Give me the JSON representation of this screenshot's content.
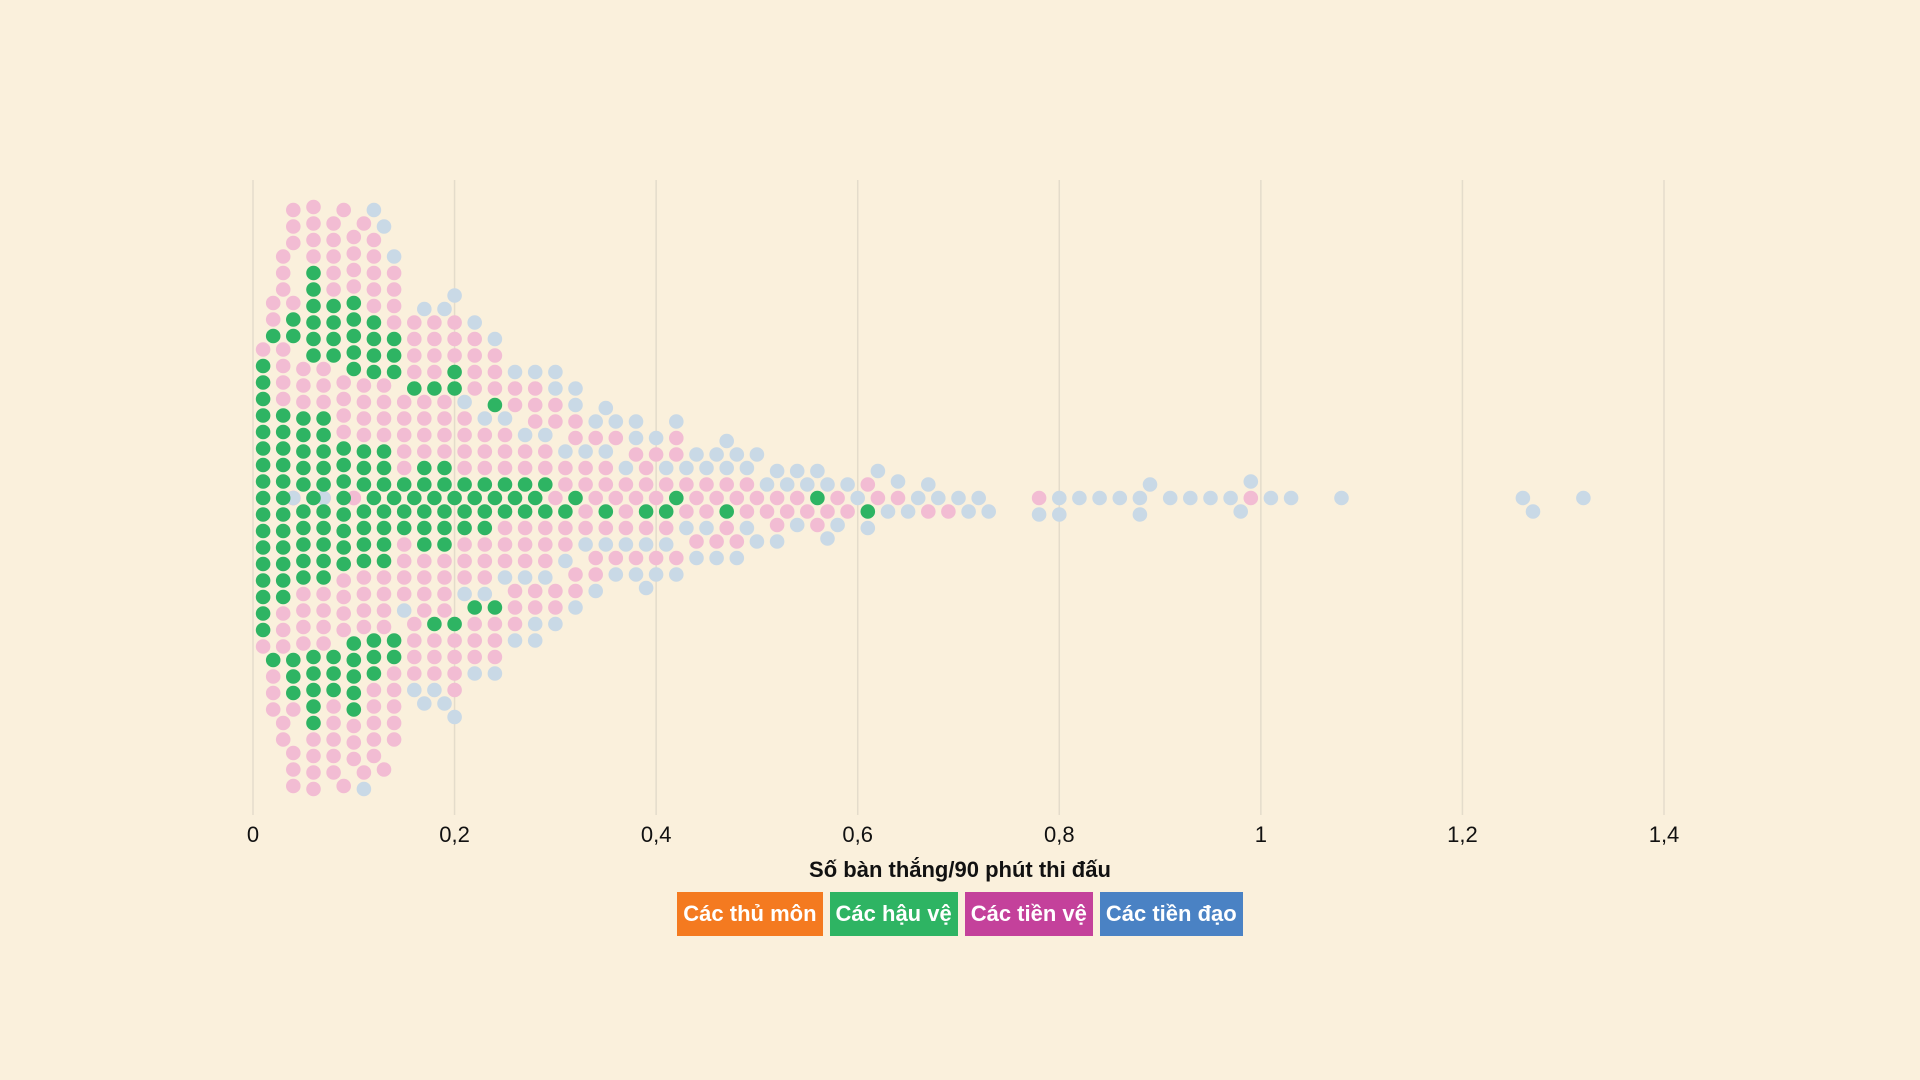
{
  "chart_data": {
    "type": "beeswarm",
    "xlabel": "Số bàn thắng/90 phút thi đấu",
    "xlim": [
      0,
      1.4
    ],
    "ticks": [
      {
        "value": 0,
        "label": "0"
      },
      {
        "value": 0.2,
        "label": "0,2"
      },
      {
        "value": 0.4,
        "label": "0,4"
      },
      {
        "value": 0.6,
        "label": "0,6"
      },
      {
        "value": 0.8,
        "label": "0,8"
      },
      {
        "value": 1.0,
        "label": "1"
      },
      {
        "value": 1.2,
        "label": "1,2"
      },
      {
        "value": 1.4,
        "label": "1,4"
      }
    ],
    "grid": true,
    "series": [
      {
        "name": "Các thủ môn",
        "key": "gk",
        "legend_color": "#f47a20",
        "dot_color": "#f47a20",
        "active": false,
        "values": []
      },
      {
        "name": "Các hậu vệ",
        "key": "def",
        "legend_color": "#2eb463",
        "dot_color": "#2eb463",
        "active": true,
        "values": [
          0.01,
          0.01,
          0.01,
          0.01,
          0.01,
          0.01,
          0.01,
          0.01,
          0.01,
          0.01,
          0.01,
          0.01,
          0.01,
          0.01,
          0.01,
          0.01,
          0.01,
          0.02,
          0.02,
          0.03,
          0.03,
          0.03,
          0.03,
          0.03,
          0.03,
          0.03,
          0.03,
          0.03,
          0.03,
          0.03,
          0.03,
          0.04,
          0.04,
          0.04,
          0.04,
          0.04,
          0.05,
          0.05,
          0.05,
          0.05,
          0.05,
          0.05,
          0.05,
          0.05,
          0.05,
          0.05,
          0.06,
          0.06,
          0.06,
          0.06,
          0.06,
          0.06,
          0.06,
          0.06,
          0.06,
          0.06,
          0.06,
          0.06,
          0.07,
          0.07,
          0.07,
          0.07,
          0.07,
          0.07,
          0.07,
          0.07,
          0.07,
          0.07,
          0.08,
          0.08,
          0.08,
          0.08,
          0.08,
          0.08,
          0.08,
          0.09,
          0.09,
          0.09,
          0.09,
          0.09,
          0.09,
          0.09,
          0.09,
          0.1,
          0.1,
          0.1,
          0.1,
          0.1,
          0.1,
          0.1,
          0.1,
          0.1,
          0.1,
          0.11,
          0.11,
          0.11,
          0.11,
          0.11,
          0.11,
          0.11,
          0.12,
          0.12,
          0.12,
          0.12,
          0.12,
          0.12,
          0.12,
          0.12,
          0.13,
          0.13,
          0.13,
          0.13,
          0.13,
          0.13,
          0.13,
          0.14,
          0.14,
          0.14,
          0.14,
          0.14,
          0.14,
          0.15,
          0.15,
          0.15,
          0.16,
          0.16,
          0.17,
          0.17,
          0.17,
          0.17,
          0.17,
          0.18,
          0.18,
          0.18,
          0.19,
          0.19,
          0.19,
          0.19,
          0.19,
          0.2,
          0.2,
          0.2,
          0.2,
          0.21,
          0.21,
          0.21,
          0.22,
          0.22,
          0.23,
          0.23,
          0.23,
          0.24,
          0.24,
          0.24,
          0.25,
          0.25,
          0.26,
          0.27,
          0.27,
          0.28,
          0.29,
          0.29,
          0.31,
          0.32,
          0.35,
          0.39,
          0.41,
          0.42,
          0.47,
          0.56,
          0.61
        ]
      },
      {
        "name": "Các tiền vệ",
        "key": "mid",
        "legend_color": "#c4419b",
        "dot_color": "#f2bcd3",
        "active": false,
        "values": [
          0.01,
          0.01,
          0.02,
          0.02,
          0.02,
          0.02,
          0.02,
          0.03,
          0.03,
          0.03,
          0.03,
          0.03,
          0.03,
          0.03,
          0.03,
          0.03,
          0.03,
          0.03,
          0.03,
          0.04,
          0.04,
          0.04,
          0.04,
          0.04,
          0.04,
          0.04,
          0.04,
          0.04,
          0.04,
          0.04,
          0.05,
          0.05,
          0.05,
          0.05,
          0.05,
          0.05,
          0.05,
          0.06,
          0.06,
          0.06,
          0.06,
          0.06,
          0.06,
          0.06,
          0.06,
          0.06,
          0.06,
          0.07,
          0.07,
          0.07,
          0.07,
          0.07,
          0.07,
          0.07,
          0.07,
          0.08,
          0.08,
          0.08,
          0.08,
          0.08,
          0.08,
          0.08,
          0.08,
          0.08,
          0.08,
          0.09,
          0.09,
          0.09,
          0.09,
          0.09,
          0.09,
          0.09,
          0.09,
          0.09,
          0.09,
          0.1,
          0.1,
          0.1,
          0.1,
          0.1,
          0.1,
          0.1,
          0.1,
          0.1,
          0.11,
          0.11,
          0.11,
          0.11,
          0.11,
          0.11,
          0.11,
          0.11,
          0.11,
          0.11,
          0.12,
          0.12,
          0.12,
          0.12,
          0.12,
          0.12,
          0.12,
          0.12,
          0.12,
          0.12,
          0.13,
          0.13,
          0.13,
          0.13,
          0.13,
          0.13,
          0.13,
          0.13,
          0.13,
          0.14,
          0.14,
          0.14,
          0.14,
          0.14,
          0.14,
          0.14,
          0.14,
          0.14,
          0.15,
          0.15,
          0.15,
          0.15,
          0.15,
          0.15,
          0.15,
          0.15,
          0.15,
          0.16,
          0.16,
          0.16,
          0.16,
          0.16,
          0.16,
          0.16,
          0.16,
          0.17,
          0.17,
          0.17,
          0.17,
          0.17,
          0.17,
          0.17,
          0.17,
          0.18,
          0.18,
          0.18,
          0.18,
          0.18,
          0.18,
          0.18,
          0.19,
          0.19,
          0.19,
          0.19,
          0.19,
          0.19,
          0.19,
          0.19,
          0.2,
          0.2,
          0.2,
          0.2,
          0.2,
          0.2,
          0.2,
          0.21,
          0.21,
          0.21,
          0.21,
          0.21,
          0.21,
          0.21,
          0.22,
          0.22,
          0.22,
          0.22,
          0.22,
          0.22,
          0.22,
          0.23,
          0.23,
          0.23,
          0.23,
          0.23,
          0.23,
          0.24,
          0.24,
          0.24,
          0.24,
          0.24,
          0.24,
          0.25,
          0.25,
          0.25,
          0.25,
          0.25,
          0.25,
          0.26,
          0.26,
          0.26,
          0.26,
          0.26,
          0.27,
          0.27,
          0.27,
          0.27,
          0.27,
          0.28,
          0.28,
          0.28,
          0.28,
          0.28,
          0.29,
          0.29,
          0.29,
          0.29,
          0.29,
          0.3,
          0.3,
          0.3,
          0.3,
          0.3,
          0.31,
          0.31,
          0.31,
          0.31,
          0.32,
          0.32,
          0.32,
          0.32,
          0.33,
          0.33,
          0.33,
          0.33,
          0.34,
          0.34,
          0.34,
          0.34,
          0.35,
          0.35,
          0.35,
          0.36,
          0.36,
          0.36,
          0.37,
          0.37,
          0.37,
          0.38,
          0.38,
          0.38,
          0.39,
          0.39,
          0.39,
          0.4,
          0.4,
          0.4,
          0.41,
          0.41,
          0.42,
          0.42,
          0.42,
          0.43,
          0.43,
          0.44,
          0.44,
          0.45,
          0.45,
          0.46,
          0.46,
          0.47,
          0.47,
          0.48,
          0.48,
          0.49,
          0.49,
          0.5,
          0.51,
          0.52,
          0.52,
          0.53,
          0.54,
          0.55,
          0.56,
          0.57,
          0.58,
          0.59,
          0.61,
          0.62,
          0.64,
          0.67,
          0.69,
          0.78,
          0.99
        ]
      },
      {
        "name": "Các tiền đạo",
        "key": "fwd",
        "legend_color": "#4a82c4",
        "dot_color": "#c9d9e6",
        "active": false,
        "values": [
          0.04,
          0.07,
          0.09,
          0.11,
          0.12,
          0.13,
          0.14,
          0.15,
          0.16,
          0.17,
          0.17,
          0.18,
          0.19,
          0.19,
          0.2,
          0.2,
          0.21,
          0.21,
          0.22,
          0.22,
          0.23,
          0.23,
          0.24,
          0.24,
          0.25,
          0.25,
          0.26,
          0.26,
          0.27,
          0.27,
          0.28,
          0.28,
          0.28,
          0.29,
          0.29,
          0.3,
          0.3,
          0.3,
          0.31,
          0.31,
          0.32,
          0.32,
          0.32,
          0.33,
          0.33,
          0.34,
          0.34,
          0.35,
          0.35,
          0.35,
          0.36,
          0.36,
          0.37,
          0.37,
          0.38,
          0.38,
          0.38,
          0.39,
          0.39,
          0.4,
          0.4,
          0.41,
          0.41,
          0.42,
          0.42,
          0.43,
          0.43,
          0.44,
          0.44,
          0.45,
          0.45,
          0.46,
          0.46,
          0.47,
          0.47,
          0.48,
          0.48,
          0.49,
          0.49,
          0.5,
          0.5,
          0.51,
          0.52,
          0.52,
          0.53,
          0.54,
          0.54,
          0.55,
          0.56,
          0.57,
          0.57,
          0.58,
          0.59,
          0.6,
          0.61,
          0.62,
          0.63,
          0.64,
          0.65,
          0.66,
          0.67,
          0.68,
          0.7,
          0.71,
          0.72,
          0.73,
          0.78,
          0.8,
          0.8,
          0.82,
          0.84,
          0.86,
          0.88,
          0.88,
          0.89,
          0.91,
          0.93,
          0.95,
          0.97,
          0.98,
          0.99,
          1.01,
          1.03,
          1.08,
          1.26,
          1.27,
          1.32
        ]
      }
    ]
  }
}
